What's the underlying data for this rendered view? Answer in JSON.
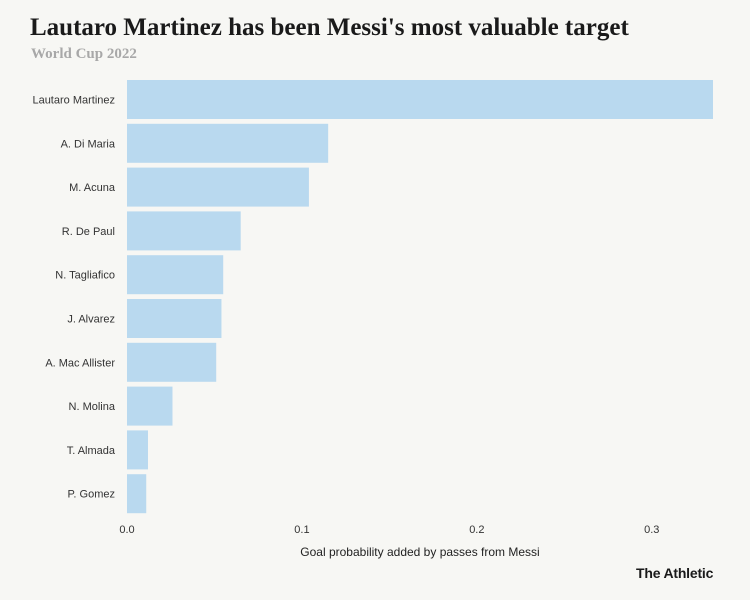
{
  "header": {
    "title": "Lautaro Martinez has been Messi's most valuable target",
    "subtitle": "World Cup 2022"
  },
  "brand": "The Athletic",
  "colors": {
    "bar": "#b9d9ef",
    "background": "#f7f7f4"
  },
  "chart_data": {
    "type": "bar",
    "orientation": "horizontal",
    "title": "Lautaro Martinez has been Messi's most valuable target",
    "subtitle": "World Cup 2022",
    "xlabel": "Goal probability added by passes from Messi",
    "ylabel": "",
    "xlim": [
      0,
      0.335
    ],
    "xticks": [
      0.0,
      0.1,
      0.2,
      0.3
    ],
    "xtick_labels": [
      "0.0",
      "0.1",
      "0.2",
      "0.3"
    ],
    "grid": false,
    "categories": [
      "Lautaro Martinez",
      "A. Di Maria",
      "M. Acuna",
      "R. De Paul",
      "N. Tagliafico",
      "J. Alvarez",
      "A. Mac Allister",
      "N. Molina",
      "T. Almada",
      "P. Gomez"
    ],
    "values": [
      0.335,
      0.115,
      0.104,
      0.065,
      0.055,
      0.054,
      0.051,
      0.026,
      0.012,
      0.011
    ]
  }
}
